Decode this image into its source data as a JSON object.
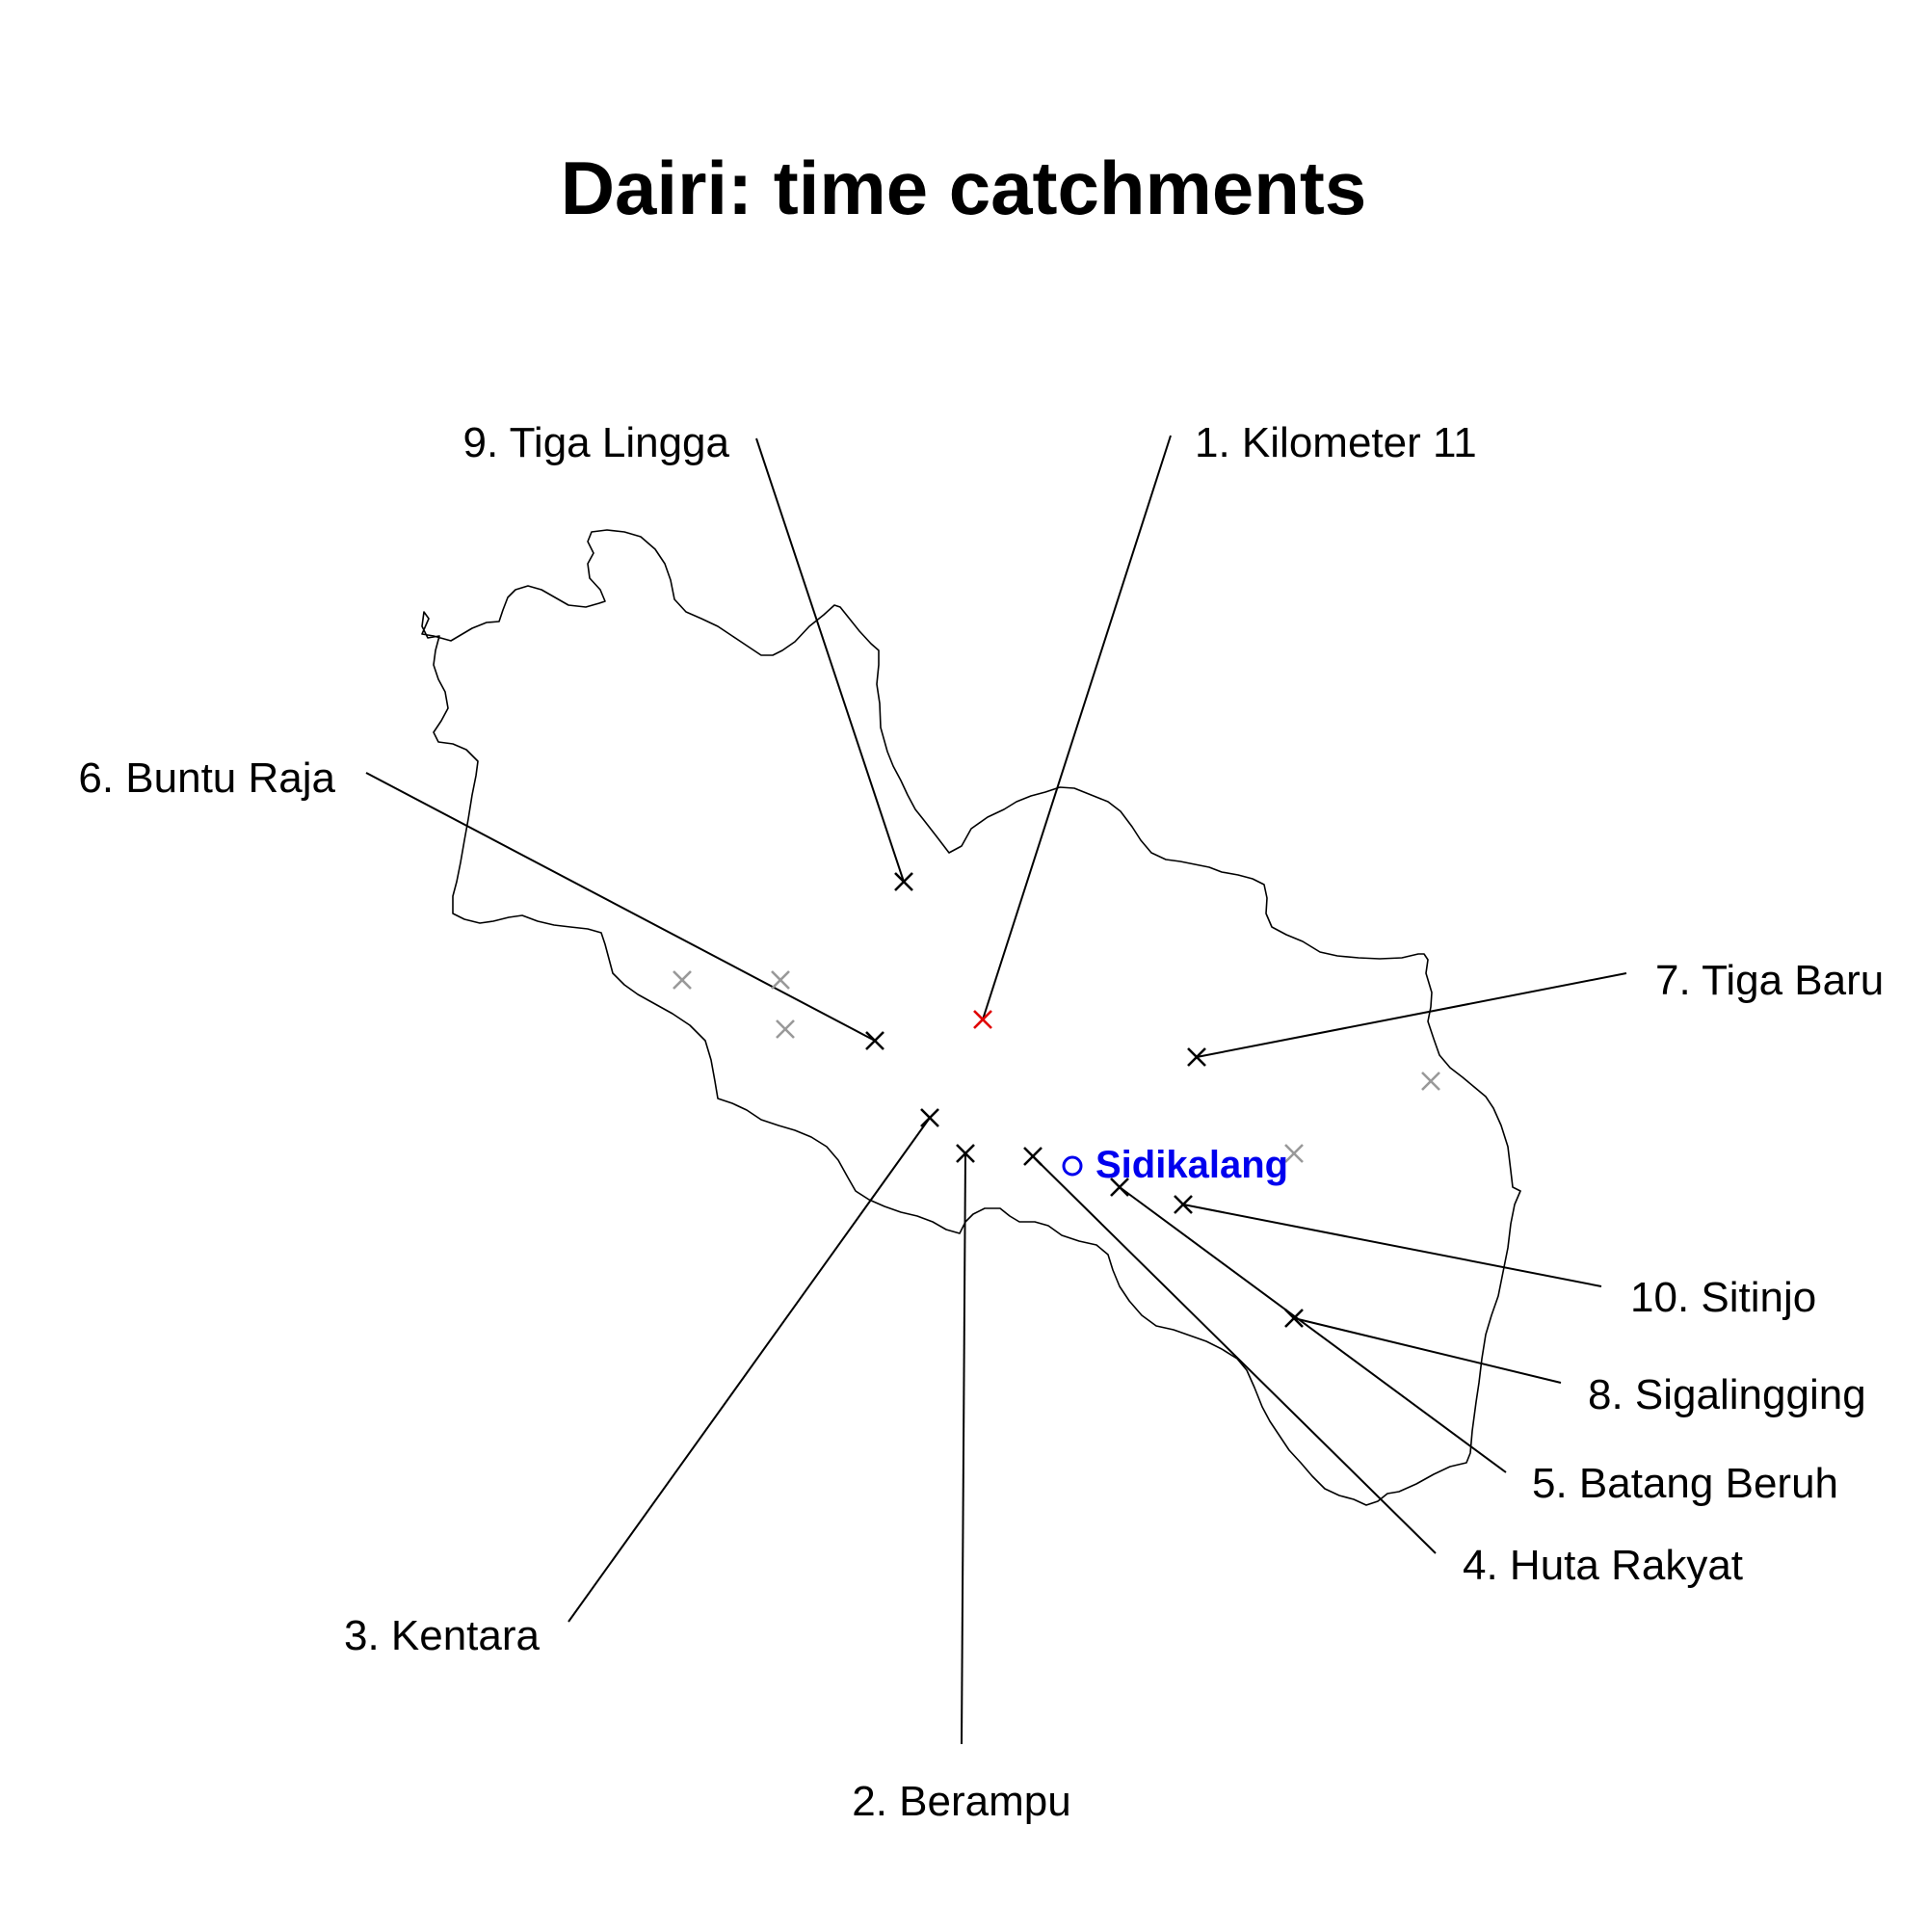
{
  "title": "Dairi: time catchments",
  "colors": {
    "boundary": "#000000",
    "leader_line": "#000000",
    "labelled_marker": "#000000",
    "highlight_marker": "#e00000",
    "other_marker": "#999999",
    "town": "#0000ee"
  },
  "town": {
    "name": "Sidikalang",
    "symbol": "open-circle"
  },
  "markers": [
    {
      "rank": "1",
      "label": "1. Kilometer 11",
      "highlight": true
    },
    {
      "rank": "2",
      "label": "2. Berampu",
      "highlight": false
    },
    {
      "rank": "3",
      "label": "3. Kentara",
      "highlight": false
    },
    {
      "rank": "4",
      "label": "4. Huta Rakyat",
      "highlight": false
    },
    {
      "rank": "5",
      "label": "5. Batang Beruh",
      "highlight": false
    },
    {
      "rank": "6",
      "label": "6. Buntu Raja",
      "highlight": false
    },
    {
      "rank": "7",
      "label": "7. Tiga Baru",
      "highlight": false
    },
    {
      "rank": "8",
      "label": "8. Sigalingging",
      "highlight": false
    },
    {
      "rank": "9",
      "label": "9. Tiga Lingga",
      "highlight": false
    },
    {
      "rank": "10",
      "label": "10. Sitinjo",
      "highlight": false
    }
  ],
  "unlabelled_markers_count": 5
}
